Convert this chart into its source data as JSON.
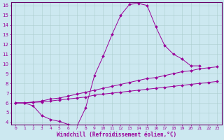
{
  "xlabel": "Windchill (Refroidissement éolien,°C)",
  "bg_color": "#cce8f0",
  "line_color": "#990099",
  "grid_color": "#aacccc",
  "spine_color": "#660066",
  "xmin": 0,
  "xmax": 23,
  "ymin": 4,
  "ymax": 16,
  "xticks": [
    0,
    1,
    2,
    3,
    4,
    5,
    6,
    7,
    8,
    9,
    10,
    11,
    12,
    13,
    14,
    15,
    16,
    17,
    18,
    19,
    20,
    21,
    22,
    23
  ],
  "yticks": [
    4,
    5,
    6,
    7,
    8,
    9,
    10,
    11,
    12,
    13,
    14,
    15,
    16
  ],
  "curves": [
    {
      "x": [
        0,
        1,
        2,
        3,
        4,
        5,
        6,
        7,
        8,
        9,
        10,
        11,
        12,
        13,
        14,
        15,
        16,
        17,
        18,
        19,
        20,
        21
      ],
      "y": [
        6.0,
        6.0,
        5.7,
        4.7,
        4.3,
        4.1,
        3.8,
        3.6,
        5.5,
        8.8,
        10.8,
        13.0,
        15.0,
        16.1,
        16.2,
        16.0,
        13.8,
        11.9,
        11.0,
        10.5,
        9.8,
        9.8
      ]
    },
    {
      "x": [
        0,
        1,
        2,
        3,
        4,
        5,
        6,
        7,
        8,
        9,
        10,
        11,
        12,
        13,
        14,
        15,
        16,
        17,
        18,
        19,
        20,
        21,
        22,
        23
      ],
      "y": [
        6.0,
        6.0,
        6.1,
        6.2,
        6.4,
        6.5,
        6.7,
        6.9,
        7.1,
        7.3,
        7.5,
        7.7,
        7.9,
        8.1,
        8.3,
        8.5,
        8.6,
        8.8,
        9.0,
        9.2,
        9.3,
        9.5,
        9.6,
        9.7
      ]
    },
    {
      "x": [
        0,
        1,
        2,
        3,
        4,
        5,
        6,
        7,
        8,
        9,
        10,
        11,
        12,
        13,
        14,
        15,
        16,
        17,
        18,
        19,
        20,
        21,
        22,
        23
      ],
      "y": [
        6.0,
        6.0,
        6.05,
        6.1,
        6.2,
        6.3,
        6.4,
        6.5,
        6.6,
        6.8,
        6.9,
        7.0,
        7.1,
        7.2,
        7.3,
        7.4,
        7.5,
        7.6,
        7.7,
        7.8,
        7.9,
        8.0,
        8.1,
        8.2
      ]
    }
  ]
}
